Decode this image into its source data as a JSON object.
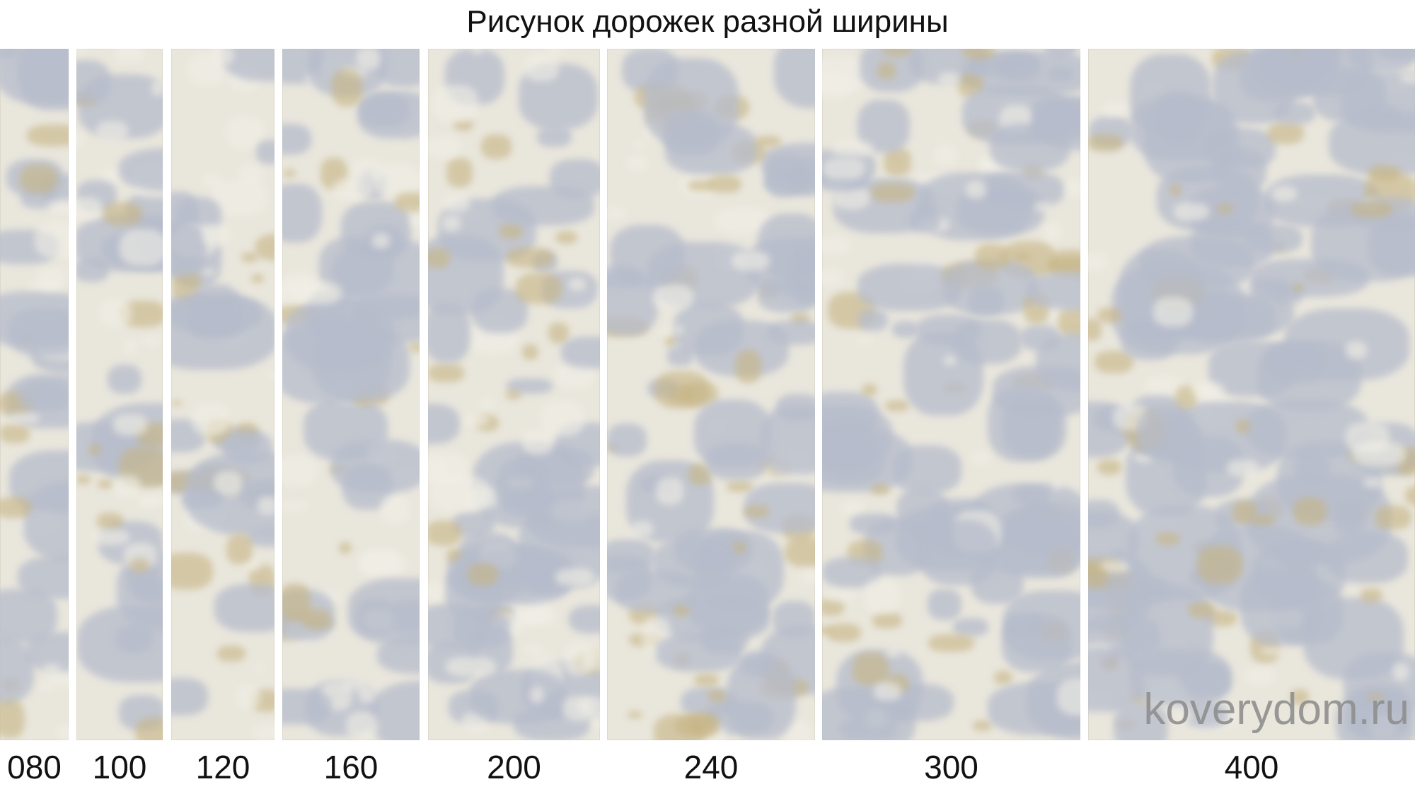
{
  "title": "Рисунок дорожек разной ширины",
  "widths": [
    "080",
    "100",
    "120",
    "160",
    "200",
    "240",
    "300",
    "400"
  ],
  "watermark": "koverydom.ru",
  "colors": {
    "base": "#e9e6dc",
    "blue_gray": "#b6bccb",
    "gold": "#c6b483",
    "cream": "#f1efe6"
  }
}
